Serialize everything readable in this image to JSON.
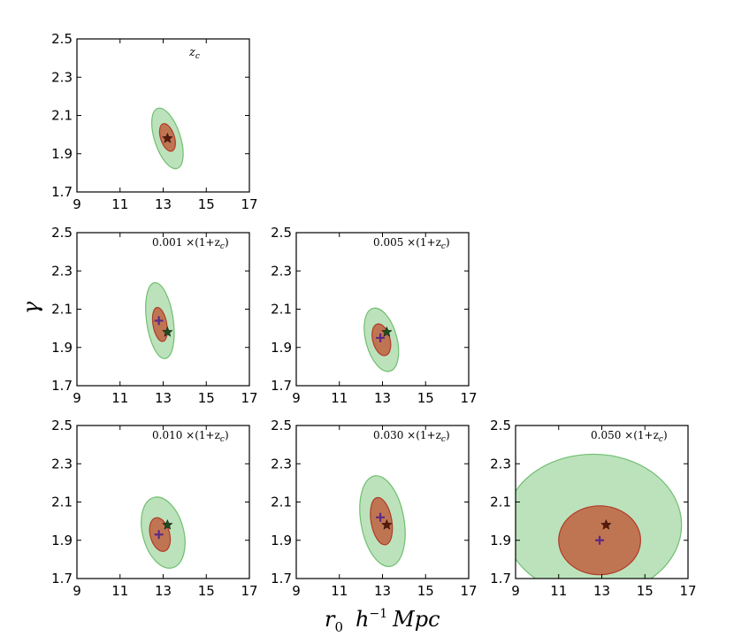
{
  "colors": {
    "outer_fill": "#a6d8a6",
    "outer_stroke": "#6fbf6f",
    "inner_fill": "#c1623f",
    "inner_stroke": "#b03a2a",
    "true_marker": "#5a1a0a",
    "true_marker_green": "#1e4d1e",
    "fit_marker": "#5b2a86"
  },
  "axis_labels": {
    "x": "r",
    "x_sub": "0",
    "x_units": "h",
    "x_units_sup": "−1",
    "x_units_tail": "Mpc",
    "y": "γ"
  },
  "chart_data": [
    {
      "type": "scatter",
      "panel": "zc",
      "annotation": "z",
      "annotation_sub": "c",
      "xlim": [
        9,
        17
      ],
      "ylim": [
        1.7,
        2.5
      ],
      "xticks": [
        "9",
        "11",
        "13",
        "15",
        "17"
      ],
      "yticks": [
        "1.7",
        "1.9",
        "2.1",
        "2.3",
        "2.5"
      ],
      "true_value": {
        "r0": 13.2,
        "gamma": 1.98
      },
      "fit_value": null,
      "ellipse_1sigma": {
        "cx": 13.2,
        "cy": 1.985,
        "rx": 0.32,
        "ry": 0.075,
        "rot": 18
      },
      "ellipse_2sigma": {
        "cx": 13.2,
        "cy": 1.98,
        "rx": 0.6,
        "ry": 0.165,
        "rot": 18
      }
    },
    {
      "type": "scatter",
      "panel": "0.001",
      "annotation": "0.001 ×(1+z",
      "annotation_sub": "c",
      "annotation_tail": ")",
      "xlim": [
        9,
        17
      ],
      "ylim": [
        1.7,
        2.5
      ],
      "xticks": [
        "9",
        "11",
        "13",
        "15",
        "17"
      ],
      "yticks": [
        "1.7",
        "1.9",
        "2.1",
        "2.3",
        "2.5"
      ],
      "true_value": {
        "r0": 13.2,
        "gamma": 1.98
      },
      "fit_value": {
        "r0": 12.8,
        "gamma": 2.04
      },
      "ellipse_1sigma": {
        "cx": 12.85,
        "cy": 2.02,
        "rx": 0.32,
        "ry": 0.09,
        "rot": 10
      },
      "ellipse_2sigma": {
        "cx": 12.85,
        "cy": 2.04,
        "rx": 0.62,
        "ry": 0.2,
        "rot": 8
      }
    },
    {
      "type": "scatter",
      "panel": "0.005",
      "annotation": "0.005 ×(1+z",
      "annotation_sub": "c",
      "annotation_tail": ")",
      "xlim": [
        9,
        17
      ],
      "ylim": [
        1.7,
        2.5
      ],
      "xticks": [
        "9",
        "11",
        "13",
        "15",
        "17"
      ],
      "yticks": [
        "1.7",
        "1.9",
        "2.1",
        "2.3",
        "2.5"
      ],
      "true_value": {
        "r0": 13.2,
        "gamma": 1.98
      },
      "fit_value": {
        "r0": 12.9,
        "gamma": 1.95
      },
      "ellipse_1sigma": {
        "cx": 12.95,
        "cy": 1.94,
        "rx": 0.4,
        "ry": 0.085,
        "rot": 15
      },
      "ellipse_2sigma": {
        "cx": 12.95,
        "cy": 1.94,
        "rx": 0.72,
        "ry": 0.17,
        "rot": 15
      }
    },
    {
      "type": "scatter",
      "panel": "0.010",
      "annotation": "0.010 ×(1+z",
      "annotation_sub": "c",
      "annotation_tail": ")",
      "xlim": [
        9,
        17
      ],
      "ylim": [
        1.7,
        2.5
      ],
      "xticks": [
        "9",
        "11",
        "13",
        "15",
        "17"
      ],
      "yticks": [
        "1.7",
        "1.9",
        "2.1",
        "2.3",
        "2.5"
      ],
      "true_value": {
        "r0": 13.2,
        "gamma": 1.98
      },
      "fit_value": {
        "r0": 12.8,
        "gamma": 1.93
      },
      "ellipse_1sigma": {
        "cx": 12.85,
        "cy": 1.93,
        "rx": 0.45,
        "ry": 0.09,
        "rot": 15
      },
      "ellipse_2sigma": {
        "cx": 13.0,
        "cy": 1.94,
        "rx": 0.95,
        "ry": 0.19,
        "rot": 15
      }
    },
    {
      "type": "scatter",
      "panel": "0.030",
      "annotation": "0.030 ×(1+z",
      "annotation_sub": "c",
      "annotation_tail": ")",
      "xlim": [
        9,
        17
      ],
      "ylim": [
        1.7,
        2.5
      ],
      "xticks": [
        "9",
        "11",
        "13",
        "15",
        "17"
      ],
      "yticks": [
        "1.7",
        "1.9",
        "2.1",
        "2.3",
        "2.5"
      ],
      "true_value": {
        "r0": 13.2,
        "gamma": 1.98
      },
      "fit_value": {
        "r0": 12.9,
        "gamma": 2.02
      },
      "ellipse_1sigma": {
        "cx": 12.95,
        "cy": 2.0,
        "rx": 0.48,
        "ry": 0.125,
        "rot": 10
      },
      "ellipse_2sigma": {
        "cx": 13.0,
        "cy": 2.0,
        "rx": 1.0,
        "ry": 0.24,
        "rot": 10
      }
    },
    {
      "type": "scatter",
      "panel": "0.050",
      "annotation": "0.050 ×(1+z",
      "annotation_sub": "c",
      "annotation_tail": ")",
      "xlim": [
        9,
        17
      ],
      "ylim": [
        1.7,
        2.5
      ],
      "xticks": [
        "9",
        "11",
        "13",
        "15",
        "17"
      ],
      "yticks": [
        "1.7",
        "1.9",
        "2.1",
        "2.3",
        "2.5"
      ],
      "true_value": {
        "r0": 13.2,
        "gamma": 1.98
      },
      "fit_value": {
        "r0": 12.9,
        "gamma": 1.9
      },
      "ellipse_1sigma": {
        "cx": 12.9,
        "cy": 1.9,
        "rx": 1.9,
        "ry": 0.18,
        "rot": 0
      },
      "ellipse_2sigma": {
        "cx": 12.6,
        "cy": 1.98,
        "rx": 4.1,
        "ry": 0.37,
        "rot": 0
      }
    }
  ]
}
